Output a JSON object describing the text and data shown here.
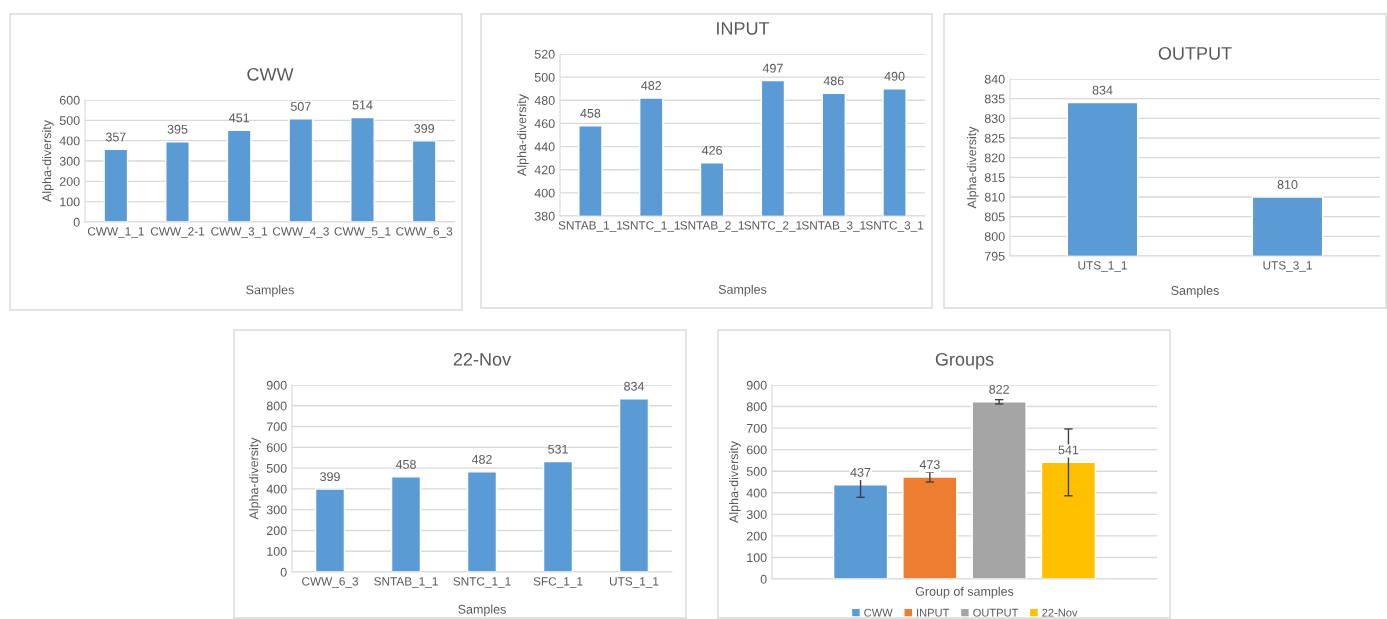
{
  "chart_data": [
    {
      "type": "bar",
      "title": "CWW",
      "xlabel": "Samples",
      "ylabel": "Alpha-diversity",
      "categories": [
        "CWW_1_1",
        "CWW_2-1",
        "CWW_3_1",
        "CWW_4_3",
        "CWW_5_1",
        "CWW_6_3"
      ],
      "values": [
        357,
        395,
        451,
        507,
        514,
        399
      ],
      "color": "#5b9bd5",
      "ylim": [
        0,
        600
      ],
      "yticks": [
        0,
        100,
        200,
        300,
        400,
        500,
        600
      ],
      "grid": "y",
      "data_labels": true
    },
    {
      "type": "bar",
      "title": "INPUT",
      "xlabel": "Samples",
      "ylabel": "Alpha-diversity",
      "categories": [
        "SNTAB_1_1",
        "SNTC_1_1",
        "SNTAB_2_1",
        "SNTC_2_1",
        "SNTAB_3_1",
        "SNTC_3_1"
      ],
      "values": [
        458,
        482,
        426,
        497,
        486,
        490
      ],
      "color": "#5b9bd5",
      "ylim": [
        380,
        520
      ],
      "yticks": [
        380,
        400,
        420,
        440,
        460,
        480,
        500,
        520
      ],
      "grid": "y",
      "data_labels": true
    },
    {
      "type": "bar",
      "title": "OUTPUT",
      "xlabel": "Samples",
      "ylabel": "Alpha-diversity",
      "categories": [
        "UTS_1_1",
        "UTS_3_1"
      ],
      "values": [
        834,
        810
      ],
      "color": "#5b9bd5",
      "ylim": [
        795,
        840
      ],
      "yticks": [
        795,
        800,
        805,
        810,
        815,
        820,
        825,
        830,
        835,
        840
      ],
      "grid": "y",
      "data_labels": true
    },
    {
      "type": "bar",
      "title": "22-Nov",
      "xlabel": "Samples",
      "ylabel": "Alpha-diversity",
      "categories": [
        "CWW_6_3",
        "SNTAB_1_1",
        "SNTC_1_1",
        "SFC_1_1",
        "UTS_1_1"
      ],
      "values": [
        399,
        458,
        482,
        531,
        834
      ],
      "color": "#5b9bd5",
      "ylim": [
        0,
        900
      ],
      "yticks": [
        0,
        100,
        200,
        300,
        400,
        500,
        600,
        700,
        800,
        900
      ],
      "grid": "y",
      "data_labels": true
    },
    {
      "type": "bar",
      "title": "Groups",
      "xlabel": "Group of samples",
      "ylabel": "Alpha-diversity",
      "categories": [
        null
      ],
      "series": [
        {
          "name": "CWW",
          "color": "#5b9bd5",
          "values": [
            437
          ],
          "errors": [
            58
          ]
        },
        {
          "name": "INPUT",
          "color": "#ed7d31",
          "values": [
            473
          ],
          "errors": [
            23
          ]
        },
        {
          "name": "OUTPUT",
          "color": "#a5a5a5",
          "values": [
            822
          ],
          "errors": [
            10
          ]
        },
        {
          "name": "22-Nov",
          "color": "#ffc000",
          "values": [
            541
          ],
          "errors": [
            155
          ]
        }
      ],
      "ylim": [
        0,
        900
      ],
      "yticks": [
        0,
        100,
        200,
        300,
        400,
        500,
        600,
        700,
        800,
        900
      ],
      "grid": "y",
      "data_labels": true,
      "legend": "bottom"
    }
  ]
}
